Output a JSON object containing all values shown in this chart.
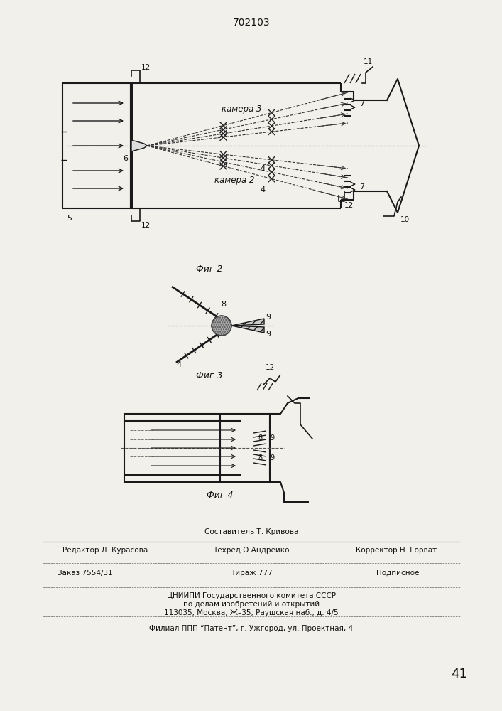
{
  "title": "702103",
  "fig2_label": "Фиг 2",
  "fig3_label": "Фиг 3",
  "fig4_label": "Фиг 4",
  "camera2_label": "камера 2",
  "camera3_label": "камера 3",
  "footer_line1": "Составитель Т. Кривова",
  "footer_line2_left": "Редактор Л. Курасова",
  "footer_line2_mid": "Техред О.Андрейко",
  "footer_line2_right": "Корректор Н. Горват",
  "footer_line3_left": "Заказ 7554/31",
  "footer_line3_mid": "Тираж 777",
  "footer_line3_right": "Подписное",
  "footer_line4": "ЦНИИПИ Государственного комитета СССР",
  "footer_line5": "по делам изобретений и открытий",
  "footer_line6": "113035, Москва, Ж–35, Раушская наб., д. 4/5",
  "footer_line7": "Филиал ППП “Патент”, г. Ужгород, ул. Проектная, 4",
  "page_num": "41",
  "bg_color": "#f2f0eb",
  "line_color": "#1a1a1a"
}
